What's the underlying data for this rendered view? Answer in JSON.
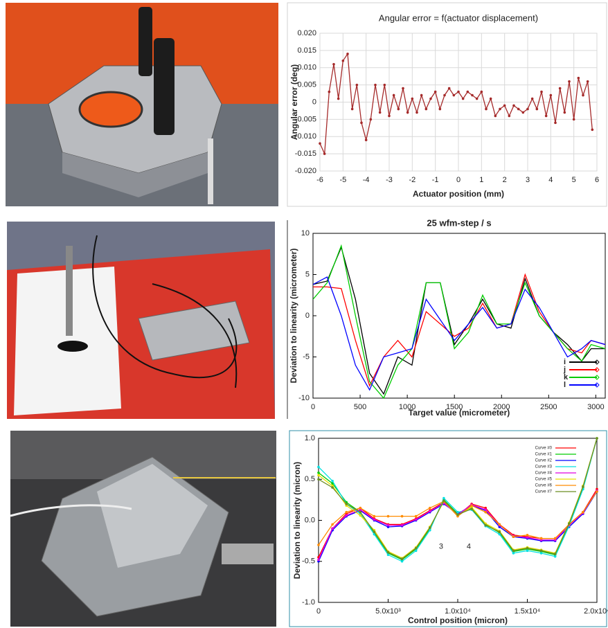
{
  "chart_data": [
    {
      "type": "line",
      "title": "Angular error = f(actuator displacement)",
      "x_label": "Actuator position (mm)",
      "y_label": "Angular error (deg)",
      "x": [
        -6,
        -5.8,
        -5.6,
        -5.4,
        -5.2,
        -5,
        -4.8,
        -4.6,
        -4.4,
        -4.2,
        -4,
        -3.8,
        -3.6,
        -3.4,
        -3.2,
        -3,
        -2.8,
        -2.6,
        -2.4,
        -2.2,
        -2,
        -1.8,
        -1.6,
        -1.4,
        -1.2,
        -1,
        -0.8,
        -0.6,
        -0.4,
        -0.2,
        0,
        0.2,
        0.4,
        0.6,
        0.8,
        1,
        1.2,
        1.4,
        1.6,
        1.8,
        2,
        2.2,
        2.4,
        2.6,
        2.8,
        3,
        3.2,
        3.4,
        3.6,
        3.8,
        4,
        4.2,
        4.4,
        4.6,
        4.8,
        5,
        5.2,
        5.4,
        5.6,
        5.8
      ],
      "series": [
        {
          "color": "#a52a2a",
          "values": [
            -0.012,
            -0.015,
            0.003,
            0.011,
            0.001,
            0.012,
            0.014,
            -0.002,
            0.005,
            -0.006,
            -0.011,
            -0.005,
            0.005,
            -0.003,
            0.005,
            -0.004,
            0.002,
            -0.002,
            0.004,
            -0.003,
            0.001,
            -0.003,
            0.002,
            -0.002,
            0.001,
            0.003,
            -0.002,
            0.002,
            0.004,
            0.002,
            0.003,
            0.001,
            0.003,
            0.002,
            0.001,
            0.003,
            -0.002,
            0.001,
            -0.004,
            -0.002,
            -0.001,
            -0.004,
            -0.001,
            -0.002,
            -0.003,
            -0.002,
            0.001,
            -0.002,
            0.003,
            -0.004,
            0.002,
            -0.006,
            0.004,
            -0.003,
            0.006,
            -0.005,
            0.007,
            0.002,
            0.006,
            -0.008
          ]
        }
      ],
      "xlim": [
        -6,
        6
      ],
      "xticks": [
        -6,
        -5,
        -4,
        -3,
        -2,
        -1,
        0,
        1,
        2,
        3,
        4,
        5,
        6
      ],
      "ylim": [
        -0.02,
        0.02
      ],
      "yticks": [
        {
          "value": -0.02,
          "label": "-0.020"
        },
        {
          "value": -0.015,
          "label": "-0.015"
        },
        {
          "value": -0.01,
          "label": "-0.010"
        },
        {
          "value": -0.005,
          "label": "-0.005"
        },
        0,
        {
          "value": 0.005,
          "label": "0.005"
        },
        {
          "value": 0.01,
          "label": "0.010"
        },
        {
          "value": 0.015,
          "label": "0.015"
        },
        {
          "value": 0.02,
          "label": "0.020"
        }
      ],
      "grid": true,
      "markers": true
    },
    {
      "type": "line",
      "title": "25 wfm-step / s",
      "x_label": "Target value (micrometer)",
      "y_label": "Deviation to linearity (micrometer)",
      "x": [
        0,
        150,
        300,
        450,
        600,
        750,
        900,
        1050,
        1200,
        1350,
        1500,
        1650,
        1800,
        1950,
        2100,
        2250,
        2400,
        2550,
        2700,
        2850,
        2950,
        3100
      ],
      "series": [
        {
          "name": "i",
          "color": "#000000",
          "values": [
            3.8,
            4.2,
            8.3,
            2,
            -7,
            -9.5,
            -5,
            -6,
            4,
            4,
            -3.5,
            -1,
            2,
            -1,
            -1.5,
            4.5,
            0,
            -2,
            -3.5,
            -5.5,
            -4,
            -4
          ]
        },
        {
          "name": "j",
          "color": "#ff0000",
          "values": [
            3.5,
            3.5,
            3.3,
            -3,
            -8.5,
            -5,
            -3,
            -5,
            0.5,
            -1,
            -2.5,
            -1.5,
            1.5,
            -1.5,
            -1,
            5,
            0.5,
            -2,
            -4,
            -4.5,
            -3,
            -3.5
          ]
        },
        {
          "name": "k",
          "color": "#00cc00",
          "values": [
            2,
            4,
            8.5,
            0,
            -8,
            -10,
            -6,
            -4,
            4,
            4,
            -4,
            -2,
            2.5,
            -1,
            -1,
            4,
            0,
            -2,
            -4,
            -5.5,
            -3.5,
            -4
          ]
        },
        {
          "name": "l",
          "color": "#0000ff",
          "values": [
            3.8,
            4.7,
            0,
            -6,
            -9,
            -5,
            -4.5,
            -4,
            2,
            -0.5,
            -3,
            -1,
            1,
            -1.5,
            -1,
            3.2,
            1,
            -2,
            -5,
            -4,
            -3,
            -3.5
          ]
        }
      ],
      "xlim": [
        0,
        3100
      ],
      "xticks": [
        0,
        500,
        1000,
        1500,
        2000,
        2500,
        3000
      ],
      "ylim": [
        -10,
        10
      ],
      "yticks": [
        -10,
        -5,
        0,
        5,
        10
      ],
      "grid": false,
      "markers": false,
      "legend": "bottom-right"
    },
    {
      "type": "line",
      "x_label": "Control position (micron)",
      "y_label": "Deviation to linearity (micron)",
      "x": [
        0,
        1000,
        2000,
        3000,
        4000,
        5000,
        6000,
        7000,
        8000,
        9000,
        10000,
        11000,
        12000,
        13000,
        14000,
        15000,
        16000,
        17000,
        18000,
        19000,
        20000
      ],
      "series": [
        {
          "name": "Curve #0",
          "color": "#ff0000",
          "values": [
            -0.45,
            -0.1,
            0.08,
            0.15,
            0.02,
            -0.05,
            -0.05,
            0.02,
            0.12,
            0.22,
            0.06,
            0.2,
            0.15,
            -0.05,
            -0.18,
            -0.2,
            -0.22,
            -0.22,
            -0.05,
            0.1,
            0.38
          ]
        },
        {
          "name": "Curve #1",
          "color": "#00cc00",
          "values": [
            0.58,
            0.45,
            0.22,
            0.1,
            -0.15,
            -0.4,
            -0.48,
            -0.35,
            -0.1,
            0.25,
            0.08,
            0.15,
            -0.05,
            -0.15,
            -0.38,
            -0.35,
            -0.38,
            -0.42,
            -0.05,
            0.4,
            1.0
          ]
        },
        {
          "name": "Curve #2",
          "color": "#0000ff",
          "values": [
            -0.5,
            -0.12,
            0.05,
            0.12,
            0,
            -0.08,
            -0.07,
            0,
            0.1,
            0.2,
            0.08,
            0.18,
            0.12,
            -0.08,
            -0.2,
            -0.22,
            -0.25,
            -0.25,
            -0.08,
            0.08,
            0.35
          ]
        },
        {
          "name": "Curve #3",
          "color": "#00e0e0",
          "values": [
            0.65,
            0.48,
            0.2,
            0.08,
            -0.17,
            -0.42,
            -0.5,
            -0.37,
            -0.12,
            0.27,
            0.1,
            0.13,
            -0.07,
            -0.17,
            -0.4,
            -0.37,
            -0.4,
            -0.44,
            -0.07,
            0.38,
            1.0
          ]
        },
        {
          "name": "Curve #4",
          "color": "#e000e0",
          "values": [
            -0.48,
            -0.1,
            0.06,
            0.13,
            0.01,
            -0.06,
            -0.06,
            0.01,
            0.11,
            0.21,
            0.07,
            0.19,
            0.13,
            -0.06,
            -0.19,
            -0.21,
            -0.24,
            -0.24,
            -0.06,
            0.09,
            0.36
          ]
        },
        {
          "name": "Curve #5",
          "color": "#e8e000",
          "values": [
            0.55,
            0.42,
            0.18,
            0.06,
            -0.12,
            -0.38,
            -0.46,
            -0.33,
            -0.08,
            0.23,
            0.06,
            0.16,
            -0.04,
            -0.13,
            -0.36,
            -0.33,
            -0.36,
            -0.4,
            -0.03,
            0.42,
            1.0
          ]
        },
        {
          "name": "Curve #6",
          "color": "#ff8c00",
          "values": [
            -0.3,
            -0.05,
            0.1,
            0.15,
            0.05,
            0.05,
            0.05,
            0.05,
            0.15,
            0.23,
            0.05,
            0.18,
            0.1,
            -0.05,
            -0.2,
            -0.18,
            -0.22,
            -0.22,
            -0.05,
            0.1,
            0.35
          ]
        },
        {
          "name": "Curve #7",
          "color": "#6b8e23",
          "values": [
            0.5,
            0.4,
            0.2,
            0.1,
            -0.14,
            -0.39,
            -0.47,
            -0.34,
            -0.09,
            0.24,
            0.07,
            0.14,
            -0.06,
            -0.14,
            -0.37,
            -0.34,
            -0.37,
            -0.41,
            -0.04,
            0.41,
            1.0
          ]
        }
      ],
      "xlim": [
        0,
        20000
      ],
      "xticks": [
        0,
        {
          "value": 5000,
          "label": "5.0x10³"
        },
        {
          "value": 10000,
          "label": "1.0x10⁴"
        },
        {
          "value": 15000,
          "label": "1.5x10⁴"
        },
        {
          "value": 20000,
          "label": "2.0x10⁴"
        }
      ],
      "ylim": [
        -1,
        1
      ],
      "yticks": [
        {
          "value": -1,
          "label": "-1.0"
        },
        {
          "value": -0.5,
          "label": "-0.5"
        },
        {
          "value": 0,
          "label": "0.0"
        },
        {
          "value": 0.5,
          "label": "0.5"
        },
        {
          "value": 1,
          "label": "1.0"
        }
      ],
      "grid": false,
      "markers": true,
      "legend": "top-right",
      "annotations": [
        "3",
        "4"
      ]
    }
  ]
}
